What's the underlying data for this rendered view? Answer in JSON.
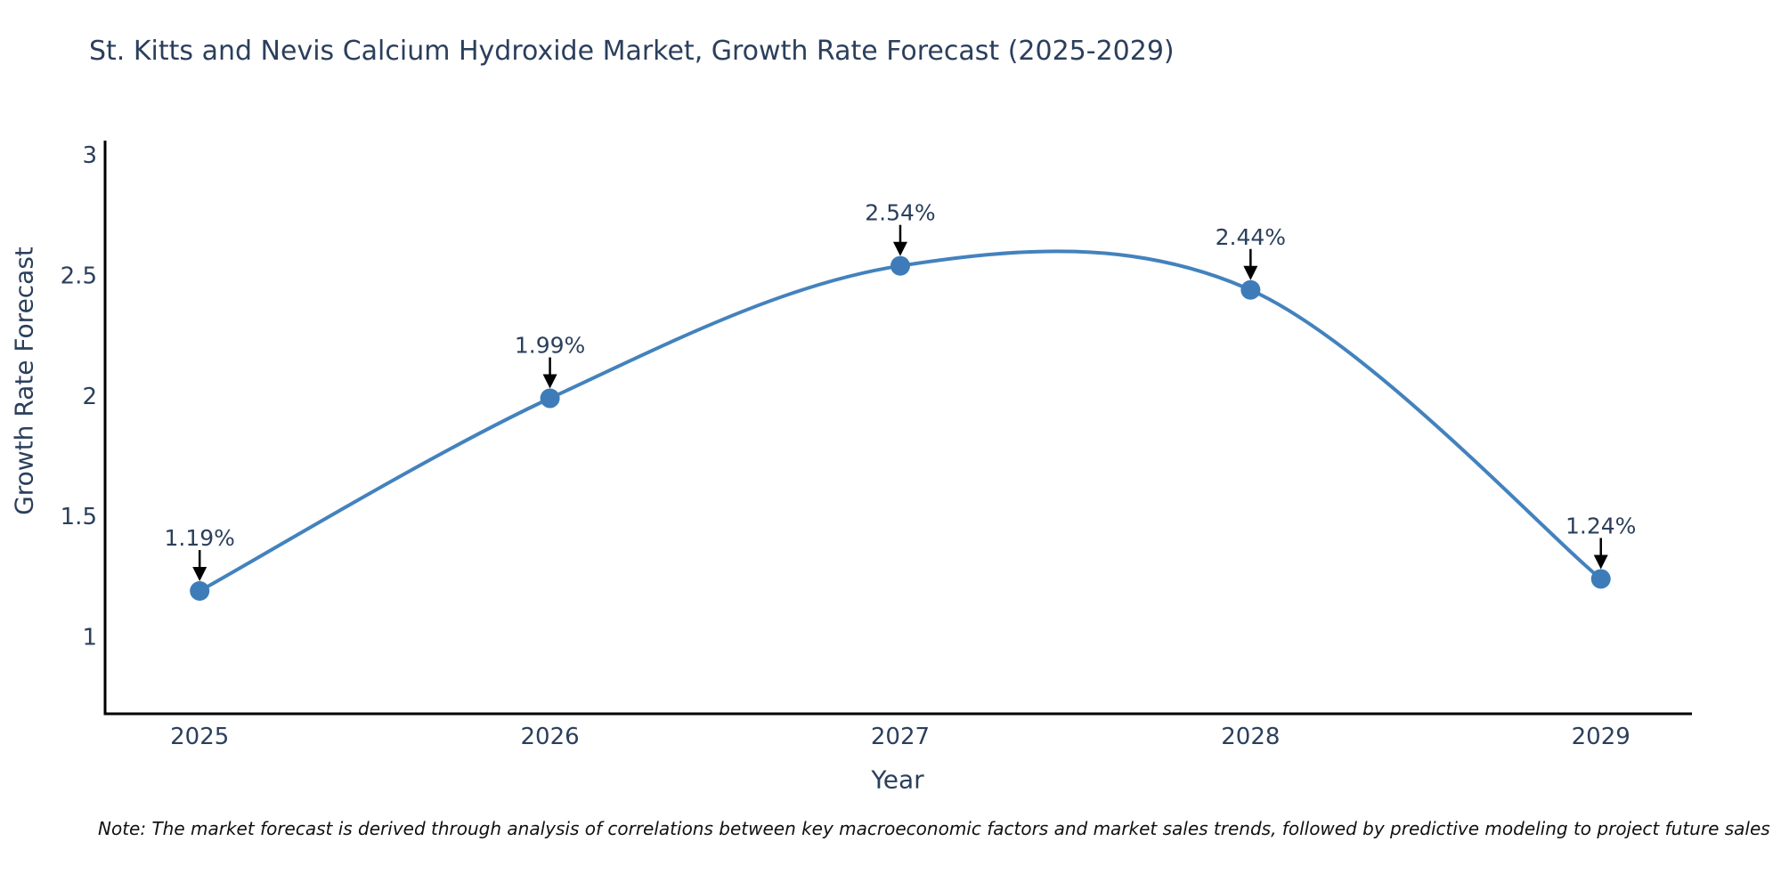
{
  "note": "Note: The market forecast is derived through analysis of correlations between key macroeconomic factors and market sales trends, followed by predictive modeling to project future sales",
  "chart_data": {
    "type": "line",
    "line_shape": "spline",
    "markers": true,
    "title": "St. Kitts and Nevis Calcium Hydroxide Market, Growth Rate Forecast (2025-2029)",
    "xlabel": "Year",
    "ylabel": "Growth Rate Forecast",
    "x": [
      2025,
      2026,
      2027,
      2028,
      2029
    ],
    "values": [
      1.19,
      1.99,
      2.54,
      2.44,
      1.24
    ],
    "point_labels": [
      "1.19%",
      "1.99%",
      "2.54%",
      "2.44%",
      "1.24%"
    ],
    "x_tick_labels": [
      "2025",
      "2026",
      "2027",
      "2028",
      "2029"
    ],
    "y_ticks": [
      3,
      2.5,
      2,
      1.5,
      1
    ],
    "y_tick_labels": [
      "3",
      "2.5",
      "2",
      "1.5",
      "1"
    ],
    "xlim": [
      2024.73,
      2029.26
    ],
    "ylim": [
      0.68,
      3.06
    ],
    "grid": false,
    "legend": false,
    "line_color": "#4382bd",
    "marker_color": "#3d7cb8",
    "axis_color": "#000000",
    "text_color": "#2b3f5c",
    "annotation_arrow_color": "#000000"
  }
}
